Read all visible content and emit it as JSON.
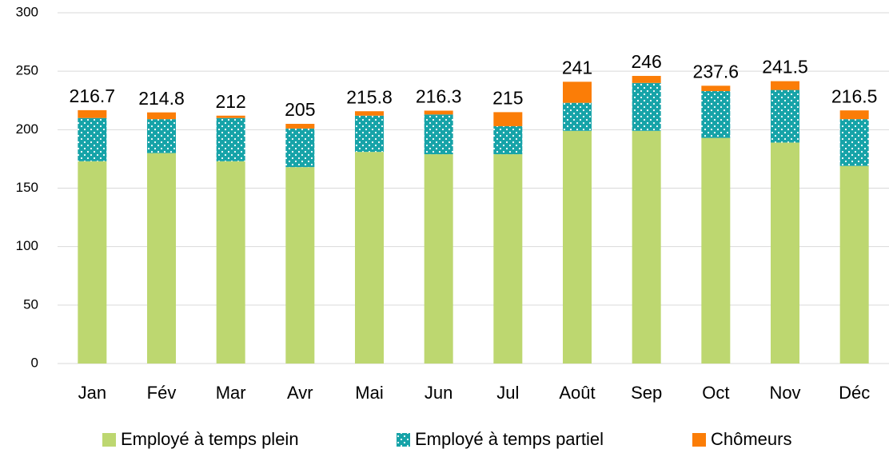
{
  "chart_data": {
    "type": "stacked_bar",
    "categories": [
      "Jan",
      "Fév",
      "Mar",
      "Avr",
      "Mai",
      "Jun",
      "Jul",
      "Août",
      "Sep",
      "Oct",
      "Nov",
      "Déc"
    ],
    "series": [
      {
        "name": "Employé à temps plein",
        "color": "#bdd770",
        "values": [
          173,
          180,
          173,
          168,
          181,
          179,
          179,
          199,
          199,
          193,
          189,
          169
        ]
      },
      {
        "name": "Employé à temps partiel",
        "color": "#16a3a8",
        "values": [
          37,
          29,
          37,
          33,
          31,
          34,
          24,
          24,
          41,
          40,
          45,
          40
        ]
      },
      {
        "name": "Chômeurs",
        "color": "#fb7d07",
        "values": [
          6.7,
          5.8,
          2,
          4,
          3.8,
          3.3,
          12,
          18,
          6,
          4.6,
          7.5,
          7.5
        ]
      }
    ],
    "totals": [
      216.7,
      214.8,
      212,
      205,
      215.8,
      216.3,
      215,
      241,
      246,
      237.6,
      241.5,
      216.5
    ],
    "ylim": [
      0,
      300
    ],
    "yticks": [
      0,
      50,
      100,
      150,
      200,
      250,
      300
    ],
    "grid": true,
    "legend": "bottom"
  }
}
